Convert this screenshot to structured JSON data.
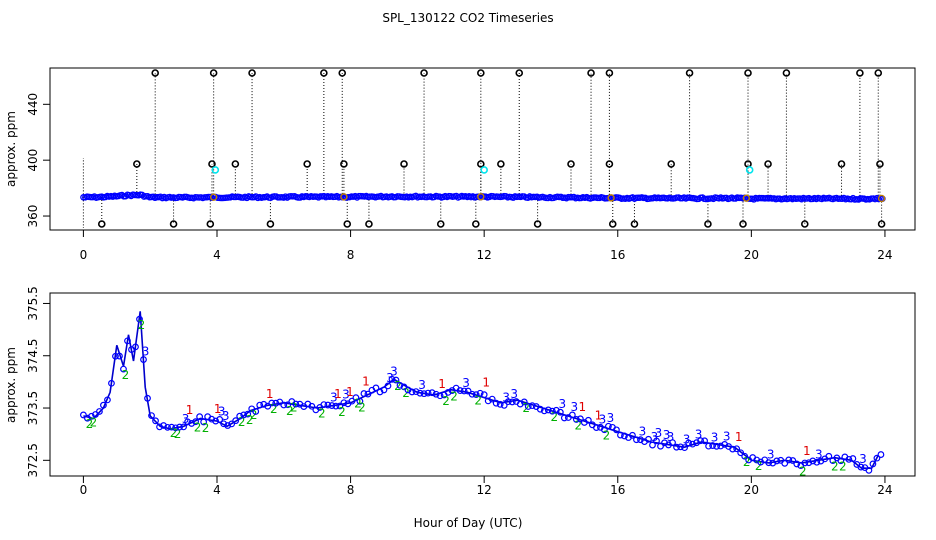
{
  "title": "SPL_130122  CO2 Timeseries",
  "xlabel": "Hour of Day (UTC)",
  "colors": {
    "point_blue": "#0000ff",
    "point_cyan": "#00e5ee",
    "outlier_black": "#000000",
    "series_1": "#e00000",
    "series_2": "#00b000",
    "series_3": "#0000ff",
    "line_blue": "#0000cc"
  },
  "chart_data": [
    {
      "type": "scatter",
      "name": "top-panel",
      "ylabel": "approx. ppm",
      "xlim": [
        -1,
        24.9
      ],
      "ylim": [
        350,
        466
      ],
      "xticks": [
        0,
        4,
        8,
        12,
        16,
        20,
        24
      ],
      "yticks": [
        360,
        400,
        440
      ],
      "xtick_labels": [
        "0",
        "4",
        "8",
        "12",
        "16",
        "20",
        "24"
      ],
      "ytick_labels": [
        "360",
        "400",
        "440"
      ],
      "baseline": [
        [
          0.0,
          373.4
        ],
        [
          0.5,
          373.6
        ],
        [
          1.0,
          374.2
        ],
        [
          1.3,
          374.8
        ],
        [
          1.7,
          375.1
        ],
        [
          2.0,
          373.4
        ],
        [
          3.0,
          373.2
        ],
        [
          4.0,
          373.4
        ],
        [
          6.0,
          373.6
        ],
        [
          8.0,
          373.7
        ],
        [
          9.3,
          374.0
        ],
        [
          10.0,
          373.9
        ],
        [
          12.0,
          373.8
        ],
        [
          14.0,
          373.4
        ],
        [
          16.0,
          372.9
        ],
        [
          18.0,
          372.7
        ],
        [
          19.5,
          372.8
        ],
        [
          20.0,
          372.4
        ],
        [
          22.0,
          372.5
        ],
        [
          23.3,
          372.3
        ],
        [
          23.9,
          372.5
        ]
      ],
      "high_spikes": [
        2.15,
        3.9,
        5.05,
        7.2,
        7.75,
        10.2,
        11.9,
        13.05,
        15.2,
        15.75,
        18.15,
        19.9,
        21.05,
        23.25,
        23.8
      ],
      "mid_spikes": [
        1.6,
        3.85,
        4.55,
        6.7,
        7.8,
        9.6,
        11.9,
        12.5,
        14.6,
        15.75,
        17.6,
        19.9,
        20.5,
        22.7,
        23.85
      ],
      "low_spikes": [
        0.55,
        2.7,
        3.8,
        5.6,
        7.9,
        8.55,
        10.7,
        11.75,
        13.6,
        15.85,
        16.5,
        18.7,
        19.75,
        21.6,
        23.9
      ],
      "cyan_points": [
        [
          3.95,
          393
        ],
        [
          12.0,
          393
        ],
        [
          19.95,
          393
        ]
      ],
      "orange_points": [
        [
          3.9,
          373.5
        ],
        [
          7.8,
          373.7
        ],
        [
          11.9,
          373.8
        ],
        [
          15.8,
          373.0
        ],
        [
          19.85,
          372.8
        ],
        [
          23.9,
          372.6
        ]
      ]
    },
    {
      "type": "line",
      "name": "bottom-panel",
      "ylabel": "approx. ppm",
      "xlim": [
        -1,
        24.9
      ],
      "ylim": [
        372.2,
        375.7
      ],
      "xticks": [
        0,
        4,
        8,
        12,
        16,
        20,
        24
      ],
      "yticks": [
        372.5,
        373.5,
        374.5,
        375.5
      ],
      "xtick_labels": [
        "0",
        "4",
        "8",
        "12",
        "16",
        "20",
        "24"
      ],
      "ytick_labels": [
        "372.5",
        "373.5",
        "374.5",
        "375.5"
      ],
      "series": [
        {
          "values": [
            [
              0.0,
              373.35
            ],
            [
              0.3,
              373.3
            ],
            [
              0.6,
              373.5
            ],
            [
              0.8,
              373.8
            ],
            [
              1.0,
              374.7
            ],
            [
              1.2,
              374.3
            ],
            [
              1.35,
              374.9
            ],
            [
              1.5,
              374.4
            ],
            [
              1.7,
              375.35
            ],
            [
              1.85,
              373.9
            ],
            [
              2.0,
              373.35
            ],
            [
              2.3,
              373.15
            ],
            [
              2.6,
              373.1
            ],
            [
              3.0,
              373.15
            ],
            [
              3.5,
              373.3
            ],
            [
              4.0,
              373.25
            ],
            [
              4.3,
              373.15
            ],
            [
              4.7,
              373.3
            ],
            [
              5.0,
              373.45
            ],
            [
              5.5,
              373.55
            ],
            [
              6.0,
              373.6
            ],
            [
              6.5,
              373.55
            ],
            [
              7.0,
              373.5
            ],
            [
              7.5,
              373.55
            ],
            [
              8.0,
              373.6
            ],
            [
              8.5,
              373.75
            ],
            [
              9.0,
              373.9
            ],
            [
              9.3,
              374.05
            ],
            [
              9.7,
              373.9
            ],
            [
              10.0,
              373.8
            ],
            [
              10.5,
              373.75
            ],
            [
              11.0,
              373.85
            ],
            [
              11.5,
              373.8
            ],
            [
              12.0,
              373.7
            ],
            [
              12.5,
              373.6
            ],
            [
              13.0,
              373.65
            ],
            [
              13.5,
              373.55
            ],
            [
              14.0,
              373.45
            ],
            [
              14.5,
              373.35
            ],
            [
              15.0,
              373.25
            ],
            [
              15.5,
              373.15
            ],
            [
              16.0,
              373.05
            ],
            [
              16.5,
              372.95
            ],
            [
              17.0,
              372.85
            ],
            [
              17.5,
              372.8
            ],
            [
              18.0,
              372.75
            ],
            [
              18.5,
              372.85
            ],
            [
              19.0,
              372.8
            ],
            [
              19.5,
              372.75
            ],
            [
              20.0,
              372.5
            ],
            [
              20.5,
              372.45
            ],
            [
              21.0,
              372.5
            ],
            [
              21.5,
              372.45
            ],
            [
              22.0,
              372.5
            ],
            [
              22.5,
              372.55
            ],
            [
              23.0,
              372.5
            ],
            [
              23.3,
              372.35
            ],
            [
              23.6,
              372.35
            ],
            [
              23.8,
              372.6
            ]
          ]
        }
      ]
    }
  ]
}
